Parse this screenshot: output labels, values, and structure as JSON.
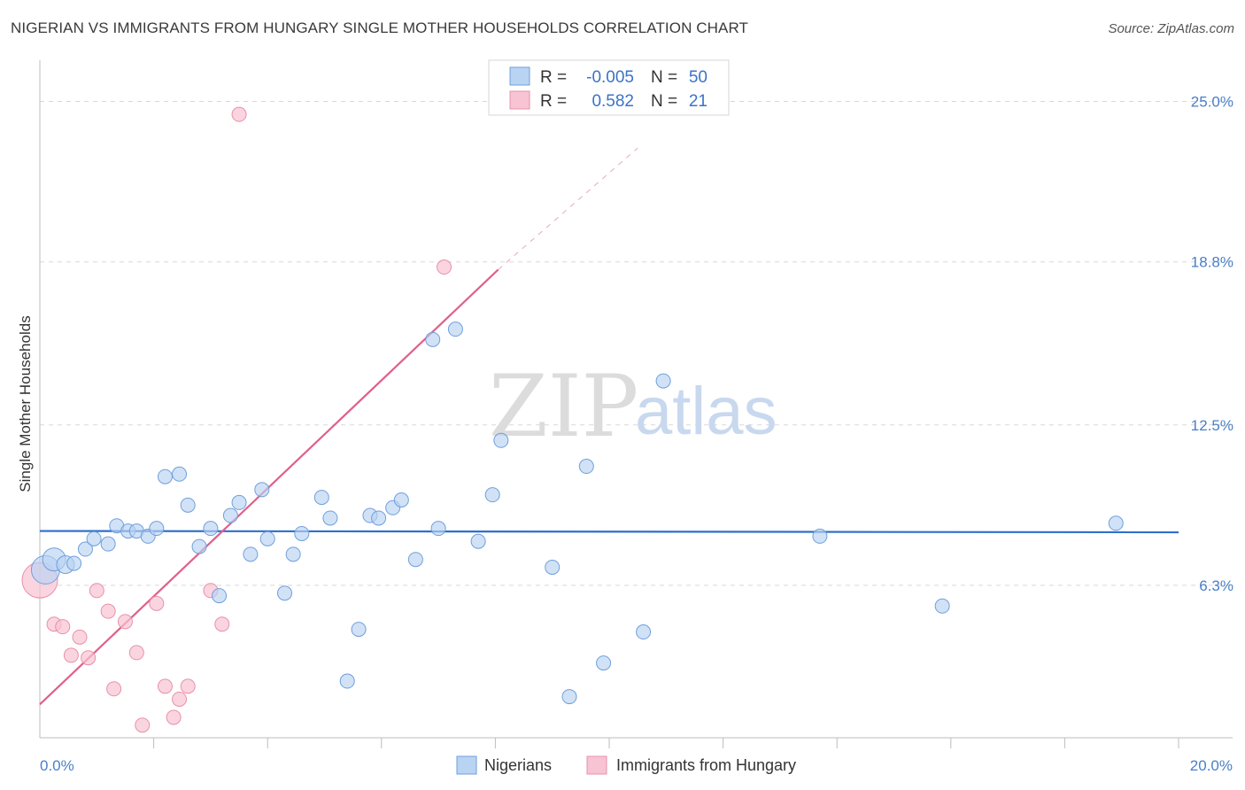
{
  "title": "NIGERIAN VS IMMIGRANTS FROM HUNGARY SINGLE MOTHER HOUSEHOLDS CORRELATION CHART",
  "source": "Source: ZipAtlas.com",
  "watermark": {
    "zip": "ZIP",
    "atlas": "atlas"
  },
  "colors": {
    "blue_fill": "#b9d3f3",
    "blue_stroke": "#6f9fdc",
    "blue_line": "#2e6fcb",
    "pink_fill": "#f8c3d2",
    "pink_stroke": "#e890aa",
    "pink_line": "#e0608a",
    "grid": "#d8d8d8",
    "axis_text": "#4a7fc6"
  },
  "legend": {
    "rows": [
      {
        "r_label": "R =",
        "r_value": "-0.005",
        "n_label": "N =",
        "n_value": "50",
        "color": "blue"
      },
      {
        "r_label": "R =",
        "r_value": "0.582",
        "n_label": "N =",
        "n_value": "21",
        "color": "pink"
      }
    ]
  },
  "bottom_legend": [
    "Nigerians",
    "Immigrants from Hungary"
  ],
  "chart_data": {
    "type": "scatter",
    "title": "NIGERIAN VS IMMIGRANTS FROM HUNGARY SINGLE MOTHER HOUSEHOLDS CORRELATION CHART",
    "xlabel": "",
    "ylabel": "Single Mother Households",
    "xlim": [
      0,
      20
    ],
    "ylim": [
      0,
      25.6
    ],
    "x_tick_labels": [
      "0.0%",
      "20.0%"
    ],
    "y_ticks": [
      6.3,
      12.5,
      18.8,
      25.0
    ],
    "y_tick_labels": [
      "6.3%",
      "12.5%",
      "18.8%",
      "25.0%"
    ],
    "series": [
      {
        "name": "Nigerians",
        "color": "blue",
        "r": -0.005,
        "n": 50,
        "trend": {
          "x": [
            0,
            20
          ],
          "y": [
            8.4,
            8.35
          ],
          "dashed_extension": false
        },
        "points": [
          [
            0.1,
            6.9,
            "large"
          ],
          [
            0.25,
            7.3,
            "big"
          ],
          [
            0.45,
            7.1,
            "mid"
          ],
          [
            0.6,
            7.15,
            "normal"
          ],
          [
            0.8,
            7.7,
            "normal"
          ],
          [
            0.95,
            8.1,
            "normal"
          ],
          [
            1.2,
            7.9,
            "normal"
          ],
          [
            1.35,
            8.6,
            "normal"
          ],
          [
            1.55,
            8.4,
            "normal"
          ],
          [
            1.7,
            8.4,
            "normal"
          ],
          [
            1.9,
            8.2,
            "normal"
          ],
          [
            2.05,
            8.5,
            "normal"
          ],
          [
            2.2,
            10.5,
            "normal"
          ],
          [
            2.45,
            10.6,
            "normal"
          ],
          [
            2.6,
            9.4,
            "normal"
          ],
          [
            2.8,
            7.8,
            "normal"
          ],
          [
            3.0,
            8.5,
            "normal"
          ],
          [
            3.15,
            5.9,
            "normal"
          ],
          [
            3.35,
            9.0,
            "normal"
          ],
          [
            3.5,
            9.5,
            "normal"
          ],
          [
            3.7,
            7.5,
            "normal"
          ],
          [
            3.9,
            10.0,
            "normal"
          ],
          [
            4.0,
            8.1,
            "normal"
          ],
          [
            4.3,
            6.0,
            "normal"
          ],
          [
            4.45,
            7.5,
            "normal"
          ],
          [
            4.6,
            8.3,
            "normal"
          ],
          [
            4.95,
            9.7,
            "normal"
          ],
          [
            5.1,
            8.9,
            "normal"
          ],
          [
            5.4,
            2.6,
            "normal"
          ],
          [
            5.6,
            4.6,
            "normal"
          ],
          [
            5.8,
            9.0,
            "normal"
          ],
          [
            5.95,
            8.9,
            "normal"
          ],
          [
            6.2,
            9.3,
            "normal"
          ],
          [
            6.35,
            9.6,
            "normal"
          ],
          [
            6.6,
            7.3,
            "normal"
          ],
          [
            6.9,
            15.8,
            "normal"
          ],
          [
            7.0,
            8.5,
            "normal"
          ],
          [
            7.3,
            16.2,
            "normal"
          ],
          [
            7.7,
            8.0,
            "normal"
          ],
          [
            7.95,
            9.8,
            "normal"
          ],
          [
            8.1,
            11.9,
            "normal"
          ],
          [
            9.0,
            7.0,
            "normal"
          ],
          [
            9.3,
            2.0,
            "normal"
          ],
          [
            9.6,
            10.9,
            "normal"
          ],
          [
            9.9,
            3.3,
            "normal"
          ],
          [
            10.6,
            4.5,
            "normal"
          ],
          [
            10.95,
            14.2,
            "normal"
          ],
          [
            13.7,
            8.2,
            "normal"
          ],
          [
            15.85,
            5.5,
            "normal"
          ],
          [
            18.9,
            8.7,
            "normal"
          ]
        ]
      },
      {
        "name": "Immigrants from Hungary",
        "color": "pink",
        "r": 0.582,
        "n": 21,
        "trend": {
          "x": [
            0,
            8.05
          ],
          "y": [
            1.7,
            18.5
          ],
          "dashed_extension": {
            "x": [
              8.05,
              10.5
            ],
            "y": [
              18.5,
              23.2
            ]
          }
        },
        "points": [
          [
            0.0,
            6.5,
            "xlarge"
          ],
          [
            0.25,
            4.8,
            "normal"
          ],
          [
            0.4,
            4.7,
            "normal"
          ],
          [
            0.55,
            3.6,
            "normal"
          ],
          [
            0.7,
            4.3,
            "normal"
          ],
          [
            0.85,
            3.5,
            "normal"
          ],
          [
            1.0,
            6.1,
            "normal"
          ],
          [
            1.2,
            5.3,
            "normal"
          ],
          [
            1.3,
            2.3,
            "normal"
          ],
          [
            1.5,
            4.9,
            "normal"
          ],
          [
            1.7,
            3.7,
            "normal"
          ],
          [
            1.8,
            0.9,
            "normal"
          ],
          [
            2.05,
            5.6,
            "normal"
          ],
          [
            2.2,
            2.4,
            "normal"
          ],
          [
            2.35,
            1.2,
            "normal"
          ],
          [
            2.45,
            1.9,
            "normal"
          ],
          [
            2.6,
            2.4,
            "normal"
          ],
          [
            3.0,
            6.1,
            "normal"
          ],
          [
            3.2,
            4.8,
            "normal"
          ],
          [
            3.5,
            24.5,
            "normal"
          ],
          [
            7.1,
            18.6,
            "normal"
          ]
        ]
      }
    ],
    "legend_position": "top-center"
  }
}
